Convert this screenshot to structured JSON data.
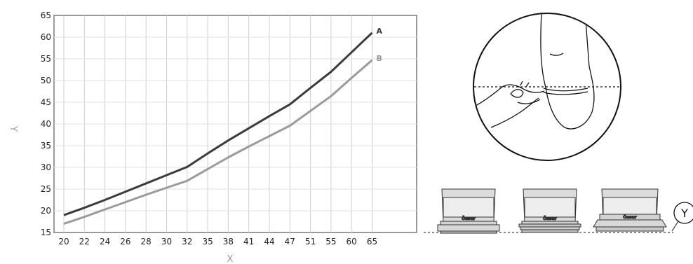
{
  "chart_data": {
    "type": "line",
    "title": "",
    "xlabel": "X",
    "ylabel": "Y",
    "categories": [
      "20",
      "22",
      "24",
      "26",
      "28",
      "30",
      "32",
      "35",
      "38",
      "41",
      "44",
      "47",
      "51",
      "55",
      "60",
      "65"
    ],
    "ylim": [
      15,
      65
    ],
    "yticks": [
      15,
      20,
      25,
      30,
      35,
      40,
      45,
      50,
      55,
      60,
      65
    ],
    "grid": "vertical",
    "series": [
      {
        "name": "A",
        "color": "#3b3b3b",
        "values": [
          19,
          20.7,
          22.5,
          24.4,
          26.3,
          28.2,
          30.1,
          33.2,
          36.2,
          39,
          41.8,
          44.5,
          48.3,
          52,
          56.5,
          61
        ]
      },
      {
        "name": "B",
        "color": "#9b9b9b",
        "values": [
          17,
          18.6,
          20.3,
          22,
          23.7,
          25.3,
          26.9,
          29.6,
          32.3,
          34.8,
          37.2,
          39.6,
          43,
          46.4,
          50.6,
          54.7
        ]
      }
    ]
  },
  "illustration": {
    "marker_label": "Y",
    "product_brand": "Össur",
    "measuring_icon": "measuring-tape-on-leg-icon",
    "liner_icon": "prosthetic-liner-icon"
  }
}
